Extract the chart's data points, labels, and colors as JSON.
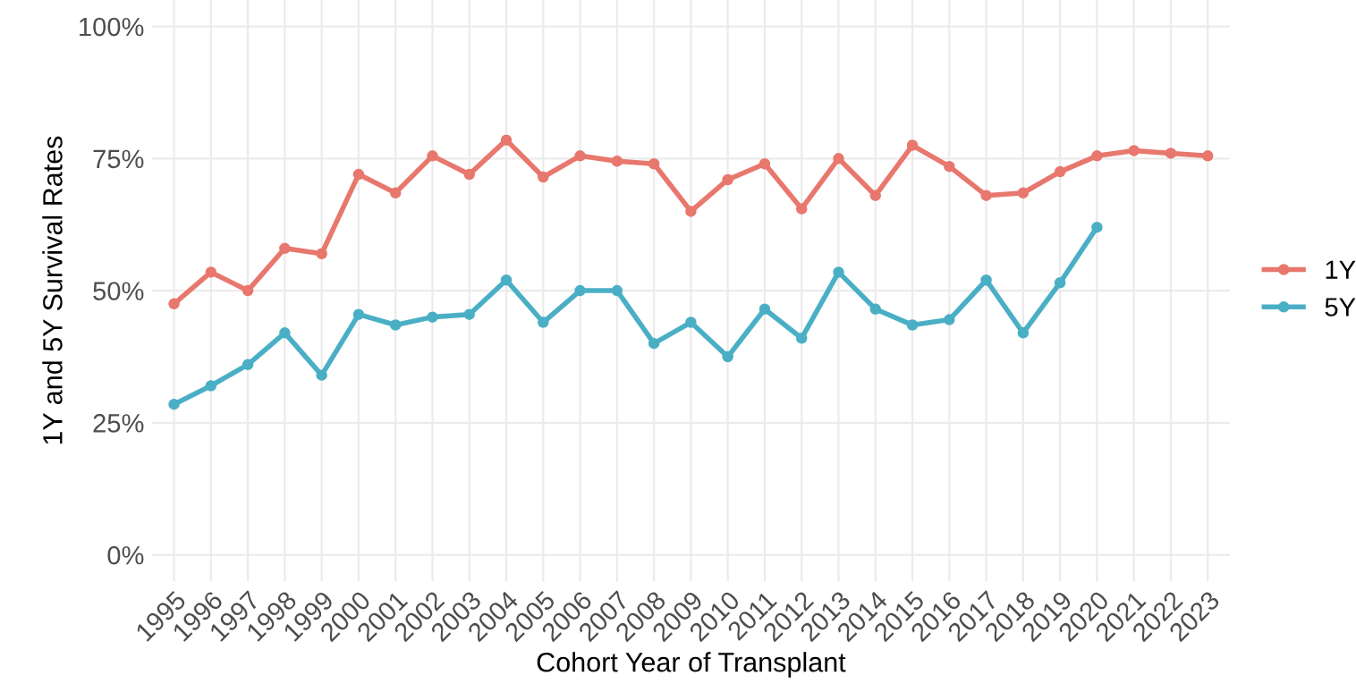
{
  "chart_data": {
    "type": "line",
    "xlabel": "Cohort Year of Transplant",
    "ylabel": "1Y and 5Y Survival Rates",
    "categories": [
      "1995",
      "1996",
      "1997",
      "1998",
      "1999",
      "2000",
      "2001",
      "2002",
      "2003",
      "2004",
      "2005",
      "2006",
      "2007",
      "2008",
      "2009",
      "2010",
      "2011",
      "2012",
      "2013",
      "2014",
      "2015",
      "2016",
      "2017",
      "2018",
      "2019",
      "2020",
      "2021",
      "2022",
      "2023"
    ],
    "series": [
      {
        "name": "1Y",
        "color": "#e8776d",
        "values": [
          47.5,
          53.5,
          50,
          58,
          57,
          72,
          68.5,
          75.5,
          72,
          78.5,
          71.5,
          75.5,
          74.5,
          74,
          65,
          71,
          74,
          65.5,
          75,
          68,
          77.5,
          73.5,
          68,
          68.5,
          72.5,
          75.5,
          76.5,
          76,
          75.5
        ]
      },
      {
        "name": "5Y",
        "color": "#4aafc5",
        "values": [
          28.5,
          32,
          36,
          42,
          34,
          45.5,
          43.5,
          45,
          45.5,
          52,
          44,
          50,
          50,
          40,
          44,
          37.5,
          46.5,
          41,
          53.5,
          46.5,
          43.5,
          44.5,
          52,
          42,
          51.5,
          62,
          null,
          null,
          null
        ]
      }
    ],
    "ylim": [
      -5,
      105
    ],
    "yticks": [
      {
        "value": 0,
        "label": "0%"
      },
      {
        "value": 25,
        "label": "25%"
      },
      {
        "value": 50,
        "label": "50%"
      },
      {
        "value": 75,
        "label": "75%"
      },
      {
        "value": 100,
        "label": "100%"
      }
    ],
    "grid": true,
    "legend": "right",
    "marker": "circle",
    "line_style": "solid"
  }
}
